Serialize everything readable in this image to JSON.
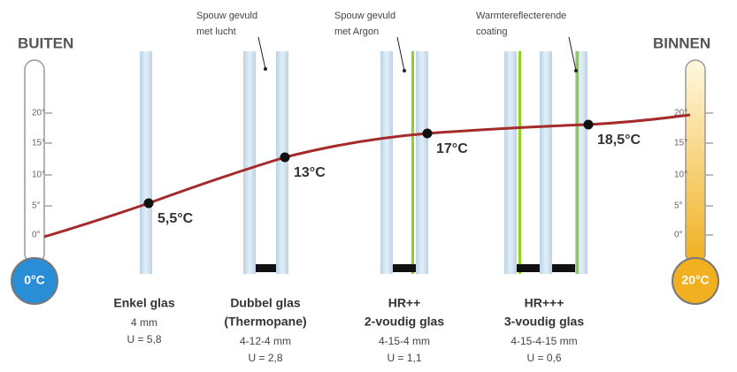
{
  "outside_label": "BUITEN",
  "inside_label": "BINNEN",
  "outside_temp": "0°C",
  "inside_temp": "20°C",
  "scale_ticks": [
    "20°",
    "15°",
    "10°",
    "5°",
    "0°"
  ],
  "annotations": [
    {
      "lines": [
        "Spouw gevuld",
        "met lucht"
      ]
    },
    {
      "lines": [
        "Spouw gevuld",
        "met Argon"
      ]
    },
    {
      "lines": [
        "Warmtereflecterende",
        "coating"
      ]
    }
  ],
  "points": [
    "5,5°C",
    "13°C",
    "17°C",
    "18,5°C"
  ],
  "glass_types": [
    {
      "lines": [
        "Enkel glas"
      ],
      "details": [
        "4 mm",
        "U = 5,8"
      ]
    },
    {
      "lines": [
        "Dubbel glas",
        "(Thermopane)"
      ],
      "details": [
        "4-12-4 mm",
        "U = 2,8"
      ]
    },
    {
      "lines": [
        "HR++",
        "2-voudig glas"
      ],
      "details": [
        "4-15-4 mm",
        "U = 1,1"
      ]
    },
    {
      "lines": [
        "HR+++",
        "3-voudig glas"
      ],
      "details": [
        "4-15-4-15 mm",
        "U = 0,6"
      ]
    }
  ]
}
